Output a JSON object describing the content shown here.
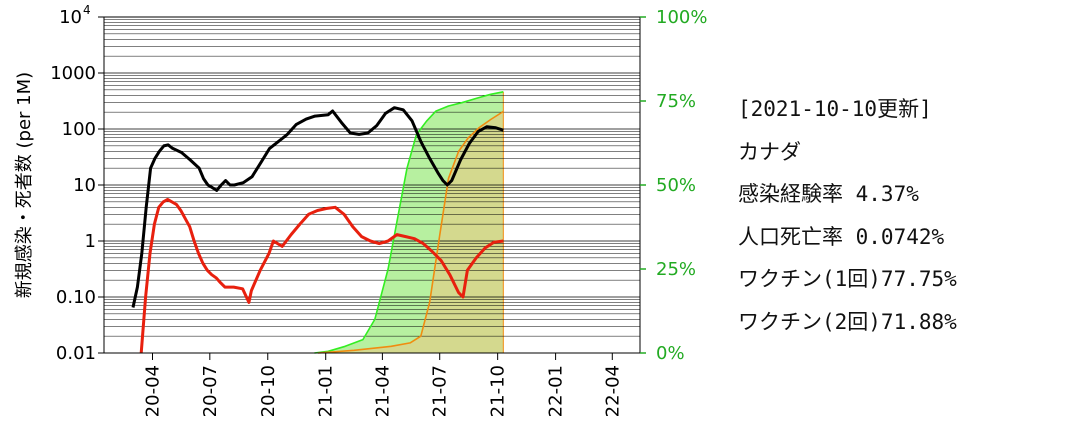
{
  "info": {
    "updated": "[2021-10-10更新]",
    "country": "カナダ",
    "infection_rate": "感染経験率 4.37%",
    "death_rate": "人口死亡率 0.0742%",
    "vaccine_1": "ワクチン(1回)77.75%",
    "vaccine_2": "ワクチン(2回)71.88%"
  },
  "colors": {
    "cases": "#000000",
    "deaths": "#e8200e",
    "vaccine_1": "#33ee22",
    "vaccine_2": "#f08c10",
    "vaccine_fill_1": "#b7f0a0",
    "vaccine_fill_2": "#d4d98e",
    "right_axis": "#22aa22"
  },
  "chart_data": {
    "type": "line",
    "ylabel": "新規感染・死者数 (per 1M)",
    "y_scale": "log",
    "ylim": [
      0.01,
      10000
    ],
    "y_ticks": [
      {
        "value": 0.01,
        "label": "0.01"
      },
      {
        "value": 0.1,
        "label": "0.10"
      },
      {
        "value": 1,
        "label": "1"
      },
      {
        "value": 10,
        "label": "10"
      },
      {
        "value": 100,
        "label": "100"
      },
      {
        "value": 1000,
        "label": "1000"
      },
      {
        "value": 10000,
        "label": "10",
        "sup": "4"
      }
    ],
    "y2lim": [
      0,
      100
    ],
    "y2_ticks": [
      {
        "value": 0,
        "label": "0%"
      },
      {
        "value": 25,
        "label": "25%"
      },
      {
        "value": 50,
        "label": "50%"
      },
      {
        "value": 75,
        "label": "75%"
      },
      {
        "value": 100,
        "label": "100%"
      }
    ],
    "xlim": [
      "2020-01-15",
      "2022-05-15"
    ],
    "x_ticks": [
      {
        "date": "2020-04-01",
        "label": "20-04"
      },
      {
        "date": "2020-07-01",
        "label": "20-07"
      },
      {
        "date": "2020-10-01",
        "label": "20-10"
      },
      {
        "date": "2021-01-01",
        "label": "21-01"
      },
      {
        "date": "2021-04-01",
        "label": "21-04"
      },
      {
        "date": "2021-07-01",
        "label": "21-07"
      },
      {
        "date": "2021-10-01",
        "label": "21-10"
      },
      {
        "date": "2022-01-01",
        "label": "22-01"
      },
      {
        "date": "2022-04-01",
        "label": "22-04"
      }
    ],
    "grid": true,
    "series": [
      {
        "key": "cases",
        "axis": "left",
        "points": [
          [
            "2020-03-01",
            0.065
          ],
          [
            "2020-03-08",
            0.15
          ],
          [
            "2020-03-15",
            0.6
          ],
          [
            "2020-03-22",
            4
          ],
          [
            "2020-03-29",
            20
          ],
          [
            "2020-04-05",
            30
          ],
          [
            "2020-04-12",
            40
          ],
          [
            "2020-04-19",
            50
          ],
          [
            "2020-04-26",
            52
          ],
          [
            "2020-05-03",
            45
          ],
          [
            "2020-05-17",
            38
          ],
          [
            "2020-05-31",
            28
          ],
          [
            "2020-06-14",
            20
          ],
          [
            "2020-06-21",
            13
          ],
          [
            "2020-06-28",
            10
          ],
          [
            "2020-07-05",
            9
          ],
          [
            "2020-07-12",
            8
          ],
          [
            "2020-07-19",
            10
          ],
          [
            "2020-07-26",
            12
          ],
          [
            "2020-08-02",
            10
          ],
          [
            "2020-08-09",
            10
          ],
          [
            "2020-08-23",
            11
          ],
          [
            "2020-09-06",
            14
          ],
          [
            "2020-09-20",
            25
          ],
          [
            "2020-10-04",
            45
          ],
          [
            "2020-10-18",
            60
          ],
          [
            "2020-11-01",
            80
          ],
          [
            "2020-11-15",
            120
          ],
          [
            "2020-12-01",
            150
          ],
          [
            "2020-12-15",
            170
          ],
          [
            "2021-01-05",
            180
          ],
          [
            "2021-01-12",
            210
          ],
          [
            "2021-01-26",
            130
          ],
          [
            "2021-02-09",
            85
          ],
          [
            "2021-02-23",
            80
          ],
          [
            "2021-03-09",
            85
          ],
          [
            "2021-03-23",
            115
          ],
          [
            "2021-04-06",
            190
          ],
          [
            "2021-04-20",
            240
          ],
          [
            "2021-05-04",
            220
          ],
          [
            "2021-05-18",
            140
          ],
          [
            "2021-06-01",
            60
          ],
          [
            "2021-06-15",
            30
          ],
          [
            "2021-06-29",
            16
          ],
          [
            "2021-07-06",
            12
          ],
          [
            "2021-07-13",
            10
          ],
          [
            "2021-07-20",
            12
          ],
          [
            "2021-08-03",
            28
          ],
          [
            "2021-08-17",
            55
          ],
          [
            "2021-08-31",
            90
          ],
          [
            "2021-09-14",
            110
          ],
          [
            "2021-09-28",
            105
          ],
          [
            "2021-10-10",
            95
          ]
        ]
      },
      {
        "key": "deaths",
        "axis": "left",
        "points": [
          [
            "2020-03-14",
            0.01
          ],
          [
            "2020-03-21",
            0.1
          ],
          [
            "2020-03-28",
            0.6
          ],
          [
            "2020-04-04",
            2
          ],
          [
            "2020-04-11",
            4
          ],
          [
            "2020-04-18",
            5
          ],
          [
            "2020-04-25",
            5.5
          ],
          [
            "2020-05-02",
            5
          ],
          [
            "2020-05-09",
            4.5
          ],
          [
            "2020-05-16",
            3.5
          ],
          [
            "2020-05-23",
            2.5
          ],
          [
            "2020-05-30",
            1.8
          ],
          [
            "2020-06-06",
            1
          ],
          [
            "2020-06-13",
            0.6
          ],
          [
            "2020-06-20",
            0.4
          ],
          [
            "2020-06-27",
            0.3
          ],
          [
            "2020-07-04",
            0.25
          ],
          [
            "2020-07-11",
            0.22
          ],
          [
            "2020-07-18",
            0.18
          ],
          [
            "2020-07-25",
            0.15
          ],
          [
            "2020-08-08",
            0.15
          ],
          [
            "2020-08-22",
            0.14
          ],
          [
            "2020-09-01",
            0.08
          ],
          [
            "2020-09-05",
            0.13
          ],
          [
            "2020-09-19",
            0.3
          ],
          [
            "2020-10-03",
            0.6
          ],
          [
            "2020-10-10",
            1
          ],
          [
            "2020-10-24",
            0.8
          ],
          [
            "2020-11-07",
            1.3
          ],
          [
            "2020-11-21",
            2
          ],
          [
            "2020-12-05",
            3
          ],
          [
            "2020-12-19",
            3.5
          ],
          [
            "2021-01-02",
            3.8
          ],
          [
            "2021-01-16",
            4
          ],
          [
            "2021-01-30",
            3
          ],
          [
            "2021-02-13",
            1.8
          ],
          [
            "2021-02-27",
            1.2
          ],
          [
            "2021-03-13",
            1
          ],
          [
            "2021-03-27",
            0.9
          ],
          [
            "2021-04-10",
            1
          ],
          [
            "2021-04-24",
            1.3
          ],
          [
            "2021-05-08",
            1.2
          ],
          [
            "2021-05-22",
            1.1
          ],
          [
            "2021-06-05",
            0.9
          ],
          [
            "2021-06-19",
            0.65
          ],
          [
            "2021-07-03",
            0.45
          ],
          [
            "2021-07-17",
            0.25
          ],
          [
            "2021-07-31",
            0.12
          ],
          [
            "2021-08-07",
            0.1
          ],
          [
            "2021-08-14",
            0.3
          ],
          [
            "2021-08-28",
            0.5
          ],
          [
            "2021-09-11",
            0.75
          ],
          [
            "2021-09-25",
            0.95
          ],
          [
            "2021-10-10",
            1
          ]
        ]
      },
      {
        "key": "vaccine_1",
        "axis": "right",
        "points": [
          [
            "2020-12-14",
            0
          ],
          [
            "2021-01-05",
            0.5
          ],
          [
            "2021-02-01",
            2
          ],
          [
            "2021-03-01",
            4
          ],
          [
            "2021-03-20",
            10
          ],
          [
            "2021-04-10",
            25
          ],
          [
            "2021-04-25",
            40
          ],
          [
            "2021-05-10",
            55
          ],
          [
            "2021-05-25",
            65
          ],
          [
            "2021-06-10",
            69
          ],
          [
            "2021-06-25",
            72
          ],
          [
            "2021-07-15",
            73.5
          ],
          [
            "2021-08-05",
            74.5
          ],
          [
            "2021-09-01",
            76
          ],
          [
            "2021-09-20",
            77
          ],
          [
            "2021-10-10",
            77.75
          ]
        ]
      },
      {
        "key": "vaccine_2",
        "axis": "right",
        "points": [
          [
            "2020-12-20",
            0
          ],
          [
            "2021-02-15",
            0.8
          ],
          [
            "2021-04-15",
            2
          ],
          [
            "2021-05-15",
            3
          ],
          [
            "2021-06-01",
            5
          ],
          [
            "2021-06-15",
            15
          ],
          [
            "2021-07-01",
            35
          ],
          [
            "2021-07-15",
            52
          ],
          [
            "2021-07-31",
            60
          ],
          [
            "2021-08-15",
            64
          ],
          [
            "2021-09-01",
            67
          ],
          [
            "2021-09-20",
            69.5
          ],
          [
            "2021-10-10",
            71.88
          ]
        ]
      }
    ]
  }
}
